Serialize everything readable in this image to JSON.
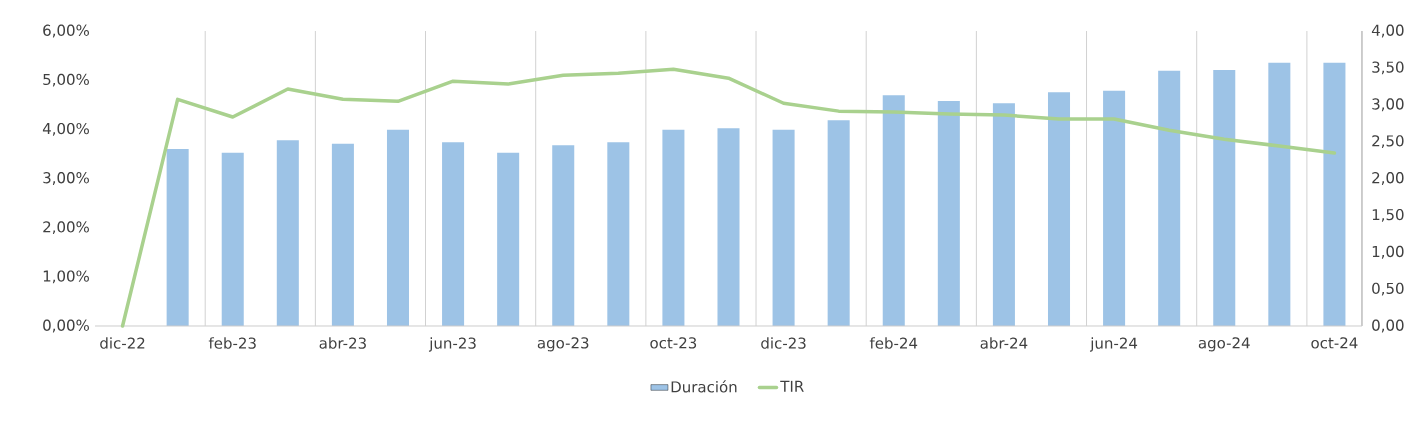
{
  "chart_data": {
    "type": "bar",
    "categories": [
      "dic-22",
      null,
      "feb-23",
      null,
      "abr-23",
      null,
      "jun-23",
      null,
      "ago-23",
      null,
      "oct-23",
      null,
      "dic-23",
      null,
      "feb-24",
      null,
      "abr-24",
      null,
      "jun-24",
      null,
      "ago-24",
      null,
      "oct-24"
    ],
    "series": [
      {
        "name": "Duración",
        "axis": "y2",
        "color": "#9dc3e6",
        "values": [
          null,
          2.4,
          2.35,
          2.52,
          2.47,
          2.66,
          2.49,
          2.35,
          2.45,
          2.49,
          2.66,
          2.68,
          2.66,
          2.79,
          3.13,
          3.05,
          3.02,
          3.17,
          3.19,
          3.46,
          3.47,
          3.57,
          3.57
        ]
      },
      {
        "name": "TIR",
        "type": "line",
        "color": "#a9d18e",
        "values": [
          0,
          4.61,
          4.25,
          4.82,
          4.61,
          4.57,
          4.98,
          4.92,
          5.1,
          5.14,
          5.22,
          5.04,
          4.53,
          4.37,
          4.35,
          4.31,
          4.29,
          4.21,
          4.21,
          3.98,
          3.8,
          3.66,
          3.52
        ]
      }
    ],
    "ylim": [
      0,
      6
    ],
    "yticks": [
      {
        "value": 0,
        "label": "0,00%"
      },
      {
        "value": 1,
        "label": "1,00%"
      },
      {
        "value": 2,
        "label": "2,00%"
      },
      {
        "value": 3,
        "label": "3,00%"
      },
      {
        "value": 4,
        "label": "4,00%"
      },
      {
        "value": 5,
        "label": "5,00%"
      },
      {
        "value": 6,
        "label": "6,00%"
      }
    ],
    "y2lim": [
      0,
      4
    ],
    "y2ticks": [
      {
        "value": 0,
        "label": "0,00"
      },
      {
        "value": 0.5,
        "label": "0,50"
      },
      {
        "value": 1,
        "label": "1,00"
      },
      {
        "value": 1.5,
        "label": "1,50"
      },
      {
        "value": 2,
        "label": "2,00"
      },
      {
        "value": 2.5,
        "label": "2,50"
      },
      {
        "value": 3,
        "label": "3,00"
      },
      {
        "value": 3.5,
        "label": "3,50"
      },
      {
        "value": 4,
        "label": "4,00"
      }
    ],
    "grid": "x",
    "legend": "bottom",
    "marker": "none",
    "line_style": "solid"
  }
}
